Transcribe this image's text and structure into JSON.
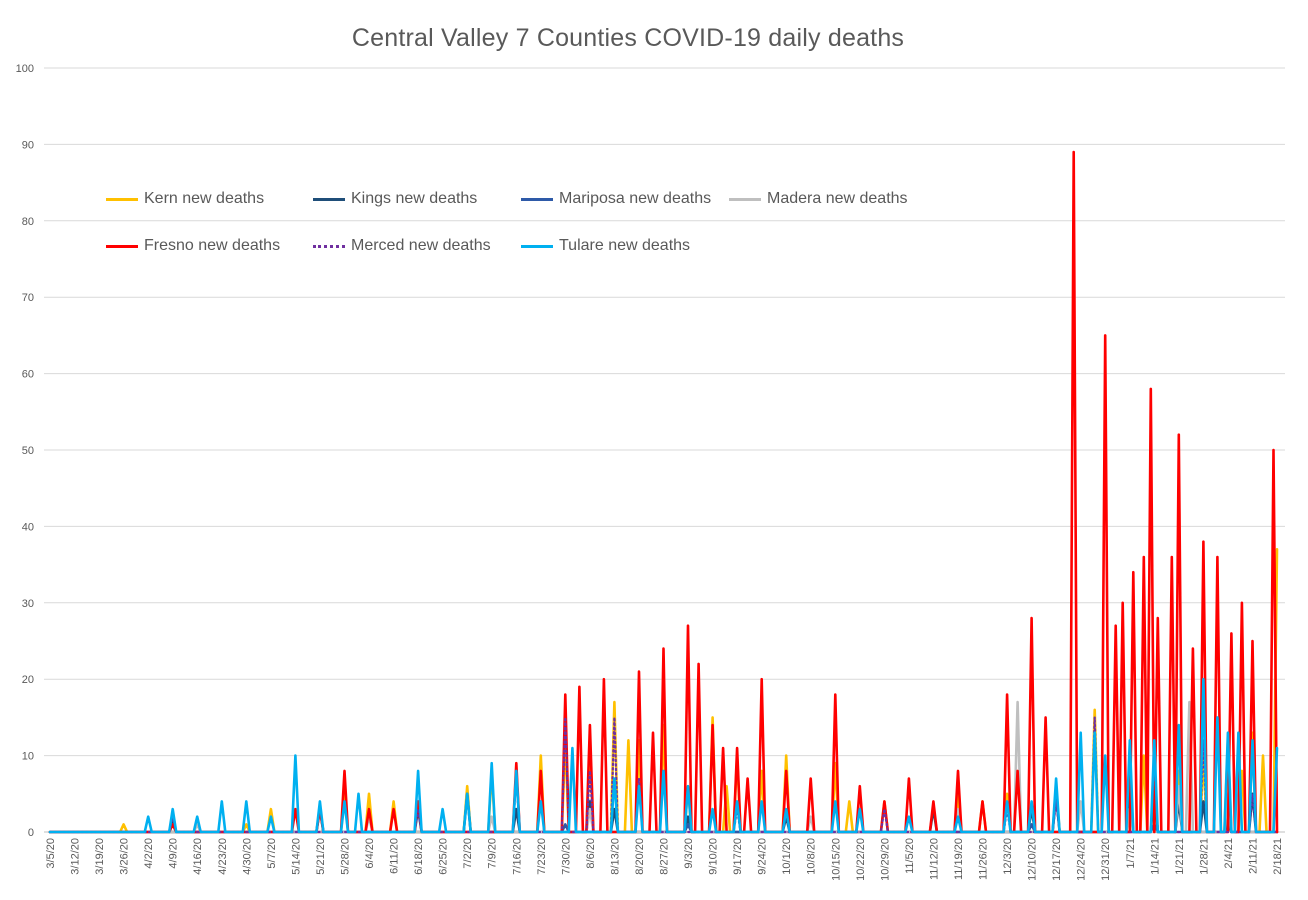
{
  "chart_data": {
    "type": "line",
    "title": "Central Valley 7 Counties COVID-19 daily deaths",
    "xlabel": "",
    "ylabel": "",
    "ylim": [
      0,
      100
    ],
    "yticks": [
      0,
      10,
      20,
      30,
      40,
      50,
      60,
      70,
      80,
      90,
      100
    ],
    "x_tick_labels": [
      "3/5/20",
      "3/12/20",
      "3/19/20",
      "3/26/20",
      "4/2/20",
      "4/9/20",
      "4/16/20",
      "4/23/20",
      "4/30/20",
      "5/7/20",
      "5/14/20",
      "5/21/20",
      "5/28/20",
      "6/4/20",
      "6/11/20",
      "6/18/20",
      "6/25/20",
      "7/2/20",
      "7/9/20",
      "7/16/20",
      "7/23/20",
      "7/30/20",
      "8/6/20",
      "8/13/20",
      "8/20/20",
      "8/27/20",
      "9/3/20",
      "9/10/20",
      "9/17/20",
      "9/24/20",
      "10/1/20",
      "10/8/20",
      "10/15/20",
      "10/22/20",
      "10/29/20",
      "11/5/20",
      "11/12/20",
      "11/19/20",
      "11/26/20",
      "12/3/20",
      "12/10/20",
      "12/17/20",
      "12/24/20",
      "12/31/20",
      "1/7/21",
      "1/14/21",
      "1/21/21",
      "1/28/21",
      "2/4/21",
      "2/11/21",
      "2/18/21"
    ],
    "x_start": "2020-03-05",
    "x_end": "2021-02-18",
    "grid": "horizontal",
    "legend_position": "top-left",
    "series": [
      {
        "name": "Kern new deaths",
        "color": "#FFC000",
        "style": "solid",
        "points": [
          [
            "2020-03-26",
            1
          ],
          [
            "2020-04-30",
            1
          ],
          [
            "2020-05-07",
            3
          ],
          [
            "2020-05-28",
            5
          ],
          [
            "2020-06-04",
            5
          ],
          [
            "2020-06-11",
            4
          ],
          [
            "2020-07-02",
            6
          ],
          [
            "2020-07-09",
            8
          ],
          [
            "2020-07-23",
            10
          ],
          [
            "2020-07-30",
            12
          ],
          [
            "2020-08-06",
            11
          ],
          [
            "2020-08-13",
            17
          ],
          [
            "2020-08-17",
            12
          ],
          [
            "2020-08-20",
            12
          ],
          [
            "2020-08-27",
            14
          ],
          [
            "2020-09-03",
            6
          ],
          [
            "2020-09-10",
            15
          ],
          [
            "2020-09-14",
            6
          ],
          [
            "2020-09-17",
            10
          ],
          [
            "2020-09-24",
            8
          ],
          [
            "2020-10-01",
            10
          ],
          [
            "2020-10-15",
            9
          ],
          [
            "2020-10-19",
            4
          ],
          [
            "2020-10-29",
            4
          ],
          [
            "2020-11-19",
            5
          ],
          [
            "2020-11-26",
            4
          ],
          [
            "2020-12-03",
            5
          ],
          [
            "2020-12-17",
            6
          ],
          [
            "2020-12-28",
            16
          ],
          [
            "2021-01-07",
            8
          ],
          [
            "2021-01-11",
            10
          ],
          [
            "2021-01-14",
            6
          ],
          [
            "2021-01-21",
            8
          ],
          [
            "2021-01-28",
            10
          ],
          [
            "2021-02-04",
            12
          ],
          [
            "2021-02-08",
            8
          ],
          [
            "2021-02-11",
            13
          ],
          [
            "2021-02-14",
            10
          ],
          [
            "2021-02-18",
            37
          ],
          [
            "2021-02-19",
            14
          ]
        ]
      },
      {
        "name": "Kings new deaths",
        "color": "#1F4E79",
        "style": "solid",
        "points": [
          [
            "2020-04-09",
            2
          ],
          [
            "2020-05-21",
            3
          ],
          [
            "2020-06-18",
            3
          ],
          [
            "2020-07-02",
            5
          ],
          [
            "2020-07-16",
            3
          ],
          [
            "2020-08-06",
            4
          ],
          [
            "2020-08-13",
            3
          ],
          [
            "2020-09-03",
            2
          ],
          [
            "2020-10-01",
            2
          ],
          [
            "2020-11-12",
            3
          ],
          [
            "2020-12-10",
            3
          ],
          [
            "2020-12-17",
            5
          ],
          [
            "2021-01-07",
            5
          ],
          [
            "2021-01-14",
            6
          ],
          [
            "2021-01-21",
            4
          ],
          [
            "2021-01-28",
            4
          ],
          [
            "2021-02-04",
            3
          ],
          [
            "2021-02-11",
            5
          ]
        ]
      },
      {
        "name": "Mariposa new deaths",
        "color": "#2E5AA8",
        "style": "solid",
        "points": [
          [
            "2020-07-30",
            1
          ],
          [
            "2020-09-03",
            1
          ],
          [
            "2020-12-10",
            1
          ],
          [
            "2021-01-14",
            1
          ],
          [
            "2021-02-04",
            1
          ]
        ]
      },
      {
        "name": "Madera new deaths",
        "color": "#BFBFBF",
        "style": "solid",
        "points": [
          [
            "2020-04-16",
            1
          ],
          [
            "2020-06-04",
            2
          ],
          [
            "2020-07-09",
            2
          ],
          [
            "2020-08-06",
            3
          ],
          [
            "2020-09-17",
            4
          ],
          [
            "2020-10-08",
            2
          ],
          [
            "2020-11-19",
            3
          ],
          [
            "2020-12-06",
            17
          ],
          [
            "2020-12-24",
            4
          ],
          [
            "2021-01-07",
            3
          ],
          [
            "2021-01-21",
            6
          ],
          [
            "2021-01-24",
            17
          ],
          [
            "2021-02-04",
            5
          ]
        ]
      },
      {
        "name": "Fresno new deaths",
        "color": "#FF0000",
        "style": "solid",
        "points": [
          [
            "2020-04-09",
            1
          ],
          [
            "2020-05-14",
            3
          ],
          [
            "2020-05-21",
            3
          ],
          [
            "2020-05-28",
            8
          ],
          [
            "2020-06-04",
            3
          ],
          [
            "2020-06-11",
            3
          ],
          [
            "2020-06-18",
            4
          ],
          [
            "2020-07-16",
            9
          ],
          [
            "2020-07-23",
            8
          ],
          [
            "2020-07-30",
            18
          ],
          [
            "2020-08-03",
            19
          ],
          [
            "2020-08-06",
            14
          ],
          [
            "2020-08-10",
            20
          ],
          [
            "2020-08-20",
            21
          ],
          [
            "2020-08-24",
            13
          ],
          [
            "2020-08-27",
            24
          ],
          [
            "2020-09-03",
            27
          ],
          [
            "2020-09-06",
            22
          ],
          [
            "2020-09-10",
            14
          ],
          [
            "2020-09-13",
            11
          ],
          [
            "2020-09-17",
            11
          ],
          [
            "2020-09-20",
            7
          ],
          [
            "2020-09-24",
            20
          ],
          [
            "2020-10-01",
            8
          ],
          [
            "2020-10-08",
            7
          ],
          [
            "2020-10-15",
            18
          ],
          [
            "2020-10-22",
            6
          ],
          [
            "2020-10-29",
            4
          ],
          [
            "2020-11-05",
            7
          ],
          [
            "2020-11-12",
            4
          ],
          [
            "2020-11-19",
            8
          ],
          [
            "2020-11-26",
            4
          ],
          [
            "2020-12-03",
            18
          ],
          [
            "2020-12-06",
            8
          ],
          [
            "2020-12-10",
            28
          ],
          [
            "2020-12-14",
            15
          ],
          [
            "2020-12-22",
            89
          ],
          [
            "2020-12-31",
            65
          ],
          [
            "2021-01-03",
            27
          ],
          [
            "2021-01-05",
            30
          ],
          [
            "2021-01-08",
            34
          ],
          [
            "2021-01-11",
            36
          ],
          [
            "2021-01-13",
            58
          ],
          [
            "2021-01-15",
            28
          ],
          [
            "2021-01-19",
            36
          ],
          [
            "2021-01-21",
            52
          ],
          [
            "2021-01-25",
            24
          ],
          [
            "2021-01-28",
            38
          ],
          [
            "2021-02-01",
            36
          ],
          [
            "2021-02-05",
            26
          ],
          [
            "2021-02-08",
            30
          ],
          [
            "2021-02-11",
            25
          ],
          [
            "2021-02-17",
            50
          ],
          [
            "2021-02-19",
            18
          ]
        ]
      },
      {
        "name": "Merced new deaths",
        "color": "#7030A0",
        "style": "dotted",
        "points": [
          [
            "2020-04-09",
            2
          ],
          [
            "2020-06-18",
            3
          ],
          [
            "2020-07-16",
            7
          ],
          [
            "2020-07-30",
            15
          ],
          [
            "2020-08-06",
            8
          ],
          [
            "2020-08-13",
            15
          ],
          [
            "2020-08-20",
            7
          ],
          [
            "2020-09-17",
            3
          ],
          [
            "2020-10-29",
            3
          ],
          [
            "2020-12-03",
            3
          ],
          [
            "2020-12-17",
            4
          ],
          [
            "2020-12-28",
            15
          ],
          [
            "2021-01-14",
            10
          ],
          [
            "2021-01-28",
            12
          ],
          [
            "2021-02-11",
            5
          ]
        ]
      },
      {
        "name": "Tulare new deaths",
        "color": "#00B0F0",
        "style": "solid",
        "points": [
          [
            "2020-04-02",
            2
          ],
          [
            "2020-04-09",
            3
          ],
          [
            "2020-04-16",
            2
          ],
          [
            "2020-04-23",
            4
          ],
          [
            "2020-04-30",
            4
          ],
          [
            "2020-05-07",
            2
          ],
          [
            "2020-05-14",
            10
          ],
          [
            "2020-05-21",
            4
          ],
          [
            "2020-05-28",
            4
          ],
          [
            "2020-06-01",
            5
          ],
          [
            "2020-06-18",
            8
          ],
          [
            "2020-06-25",
            3
          ],
          [
            "2020-07-02",
            5
          ],
          [
            "2020-07-09",
            9
          ],
          [
            "2020-07-16",
            8
          ],
          [
            "2020-07-23",
            4
          ],
          [
            "2020-08-01",
            11
          ],
          [
            "2020-08-13",
            7
          ],
          [
            "2020-08-20",
            6
          ],
          [
            "2020-08-27",
            8
          ],
          [
            "2020-09-03",
            6
          ],
          [
            "2020-09-10",
            3
          ],
          [
            "2020-09-17",
            4
          ],
          [
            "2020-09-24",
            4
          ],
          [
            "2020-10-01",
            3
          ],
          [
            "2020-10-15",
            4
          ],
          [
            "2020-10-22",
            3
          ],
          [
            "2020-11-05",
            2
          ],
          [
            "2020-11-19",
            2
          ],
          [
            "2020-12-03",
            4
          ],
          [
            "2020-12-10",
            4
          ],
          [
            "2020-12-17",
            7
          ],
          [
            "2020-12-24",
            13
          ],
          [
            "2020-12-28",
            13
          ],
          [
            "2020-12-31",
            10
          ],
          [
            "2021-01-07",
            12
          ],
          [
            "2021-01-14",
            12
          ],
          [
            "2021-01-21",
            14
          ],
          [
            "2021-01-28",
            20
          ],
          [
            "2021-02-01",
            15
          ],
          [
            "2021-02-04",
            13
          ],
          [
            "2021-02-07",
            13
          ],
          [
            "2021-02-11",
            12
          ],
          [
            "2021-02-18",
            11
          ]
        ]
      }
    ]
  }
}
